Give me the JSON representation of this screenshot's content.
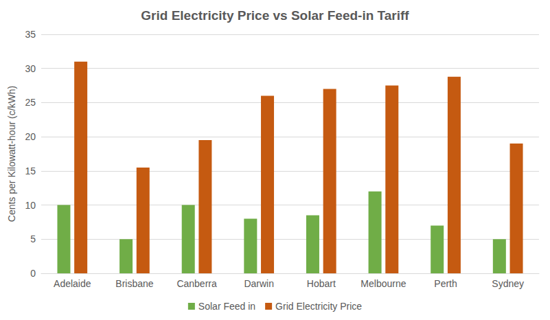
{
  "chart_data": {
    "type": "bar",
    "title": "Grid Electricity Price vs Solar Feed-in Tariff",
    "y_label": "Cents per Kilowatt-hour (c/kWh)",
    "categories": [
      "Adelaide",
      "Brisbane",
      "Canberra",
      "Darwin",
      "Hobart",
      "Melbourne",
      "Perth",
      "Sydney"
    ],
    "series": [
      {
        "name": "Solar Feed in",
        "color": "#70ad47",
        "values": [
          10,
          5,
          10,
          8,
          8.5,
          12,
          7,
          5
        ]
      },
      {
        "name": "Grid Electricity Price",
        "color": "#c55a11",
        "values": [
          31,
          15.5,
          19.5,
          26,
          27,
          27.5,
          28.8,
          19
        ]
      }
    ],
    "ylim": [
      0,
      35
    ],
    "yticks": [
      0,
      5,
      10,
      15,
      20,
      25,
      30,
      35
    ],
    "grid": true,
    "legend": "bottom"
  }
}
